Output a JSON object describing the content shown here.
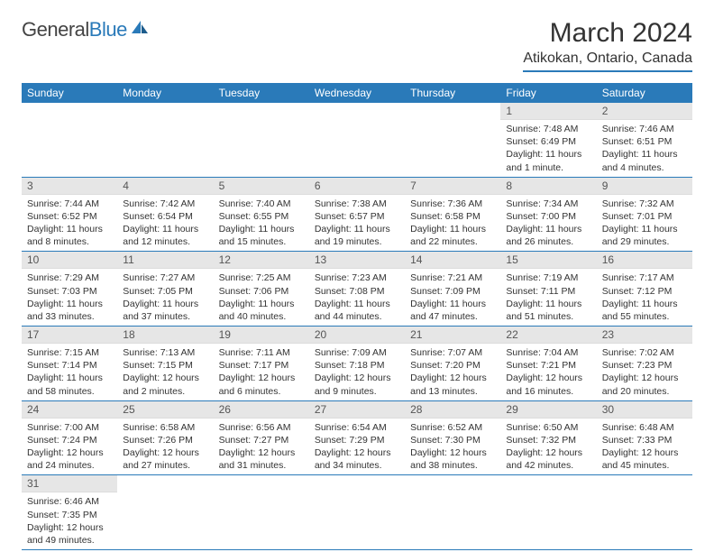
{
  "logo": {
    "text_a": "General",
    "text_b": "Blue"
  },
  "title": "March 2024",
  "location": "Atikokan, Ontario, Canada",
  "colors": {
    "accent": "#2a7ab9",
    "header_row_bg": "#e6e6e6",
    "text": "#333333"
  },
  "weekdays": [
    "Sunday",
    "Monday",
    "Tuesday",
    "Wednesday",
    "Thursday",
    "Friday",
    "Saturday"
  ],
  "weeks": [
    [
      null,
      null,
      null,
      null,
      null,
      {
        "n": "1",
        "sr": "Sunrise: 7:48 AM",
        "ss": "Sunset: 6:49 PM",
        "dl": "Daylight: 11 hours and 1 minute."
      },
      {
        "n": "2",
        "sr": "Sunrise: 7:46 AM",
        "ss": "Sunset: 6:51 PM",
        "dl": "Daylight: 11 hours and 4 minutes."
      }
    ],
    [
      {
        "n": "3",
        "sr": "Sunrise: 7:44 AM",
        "ss": "Sunset: 6:52 PM",
        "dl": "Daylight: 11 hours and 8 minutes."
      },
      {
        "n": "4",
        "sr": "Sunrise: 7:42 AM",
        "ss": "Sunset: 6:54 PM",
        "dl": "Daylight: 11 hours and 12 minutes."
      },
      {
        "n": "5",
        "sr": "Sunrise: 7:40 AM",
        "ss": "Sunset: 6:55 PM",
        "dl": "Daylight: 11 hours and 15 minutes."
      },
      {
        "n": "6",
        "sr": "Sunrise: 7:38 AM",
        "ss": "Sunset: 6:57 PM",
        "dl": "Daylight: 11 hours and 19 minutes."
      },
      {
        "n": "7",
        "sr": "Sunrise: 7:36 AM",
        "ss": "Sunset: 6:58 PM",
        "dl": "Daylight: 11 hours and 22 minutes."
      },
      {
        "n": "8",
        "sr": "Sunrise: 7:34 AM",
        "ss": "Sunset: 7:00 PM",
        "dl": "Daylight: 11 hours and 26 minutes."
      },
      {
        "n": "9",
        "sr": "Sunrise: 7:32 AM",
        "ss": "Sunset: 7:01 PM",
        "dl": "Daylight: 11 hours and 29 minutes."
      }
    ],
    [
      {
        "n": "10",
        "sr": "Sunrise: 7:29 AM",
        "ss": "Sunset: 7:03 PM",
        "dl": "Daylight: 11 hours and 33 minutes."
      },
      {
        "n": "11",
        "sr": "Sunrise: 7:27 AM",
        "ss": "Sunset: 7:05 PM",
        "dl": "Daylight: 11 hours and 37 minutes."
      },
      {
        "n": "12",
        "sr": "Sunrise: 7:25 AM",
        "ss": "Sunset: 7:06 PM",
        "dl": "Daylight: 11 hours and 40 minutes."
      },
      {
        "n": "13",
        "sr": "Sunrise: 7:23 AM",
        "ss": "Sunset: 7:08 PM",
        "dl": "Daylight: 11 hours and 44 minutes."
      },
      {
        "n": "14",
        "sr": "Sunrise: 7:21 AM",
        "ss": "Sunset: 7:09 PM",
        "dl": "Daylight: 11 hours and 47 minutes."
      },
      {
        "n": "15",
        "sr": "Sunrise: 7:19 AM",
        "ss": "Sunset: 7:11 PM",
        "dl": "Daylight: 11 hours and 51 minutes."
      },
      {
        "n": "16",
        "sr": "Sunrise: 7:17 AM",
        "ss": "Sunset: 7:12 PM",
        "dl": "Daylight: 11 hours and 55 minutes."
      }
    ],
    [
      {
        "n": "17",
        "sr": "Sunrise: 7:15 AM",
        "ss": "Sunset: 7:14 PM",
        "dl": "Daylight: 11 hours and 58 minutes."
      },
      {
        "n": "18",
        "sr": "Sunrise: 7:13 AM",
        "ss": "Sunset: 7:15 PM",
        "dl": "Daylight: 12 hours and 2 minutes."
      },
      {
        "n": "19",
        "sr": "Sunrise: 7:11 AM",
        "ss": "Sunset: 7:17 PM",
        "dl": "Daylight: 12 hours and 6 minutes."
      },
      {
        "n": "20",
        "sr": "Sunrise: 7:09 AM",
        "ss": "Sunset: 7:18 PM",
        "dl": "Daylight: 12 hours and 9 minutes."
      },
      {
        "n": "21",
        "sr": "Sunrise: 7:07 AM",
        "ss": "Sunset: 7:20 PM",
        "dl": "Daylight: 12 hours and 13 minutes."
      },
      {
        "n": "22",
        "sr": "Sunrise: 7:04 AM",
        "ss": "Sunset: 7:21 PM",
        "dl": "Daylight: 12 hours and 16 minutes."
      },
      {
        "n": "23",
        "sr": "Sunrise: 7:02 AM",
        "ss": "Sunset: 7:23 PM",
        "dl": "Daylight: 12 hours and 20 minutes."
      }
    ],
    [
      {
        "n": "24",
        "sr": "Sunrise: 7:00 AM",
        "ss": "Sunset: 7:24 PM",
        "dl": "Daylight: 12 hours and 24 minutes."
      },
      {
        "n": "25",
        "sr": "Sunrise: 6:58 AM",
        "ss": "Sunset: 7:26 PM",
        "dl": "Daylight: 12 hours and 27 minutes."
      },
      {
        "n": "26",
        "sr": "Sunrise: 6:56 AM",
        "ss": "Sunset: 7:27 PM",
        "dl": "Daylight: 12 hours and 31 minutes."
      },
      {
        "n": "27",
        "sr": "Sunrise: 6:54 AM",
        "ss": "Sunset: 7:29 PM",
        "dl": "Daylight: 12 hours and 34 minutes."
      },
      {
        "n": "28",
        "sr": "Sunrise: 6:52 AM",
        "ss": "Sunset: 7:30 PM",
        "dl": "Daylight: 12 hours and 38 minutes."
      },
      {
        "n": "29",
        "sr": "Sunrise: 6:50 AM",
        "ss": "Sunset: 7:32 PM",
        "dl": "Daylight: 12 hours and 42 minutes."
      },
      {
        "n": "30",
        "sr": "Sunrise: 6:48 AM",
        "ss": "Sunset: 7:33 PM",
        "dl": "Daylight: 12 hours and 45 minutes."
      }
    ],
    [
      {
        "n": "31",
        "sr": "Sunrise: 6:46 AM",
        "ss": "Sunset: 7:35 PM",
        "dl": "Daylight: 12 hours and 49 minutes."
      },
      null,
      null,
      null,
      null,
      null,
      null
    ]
  ]
}
